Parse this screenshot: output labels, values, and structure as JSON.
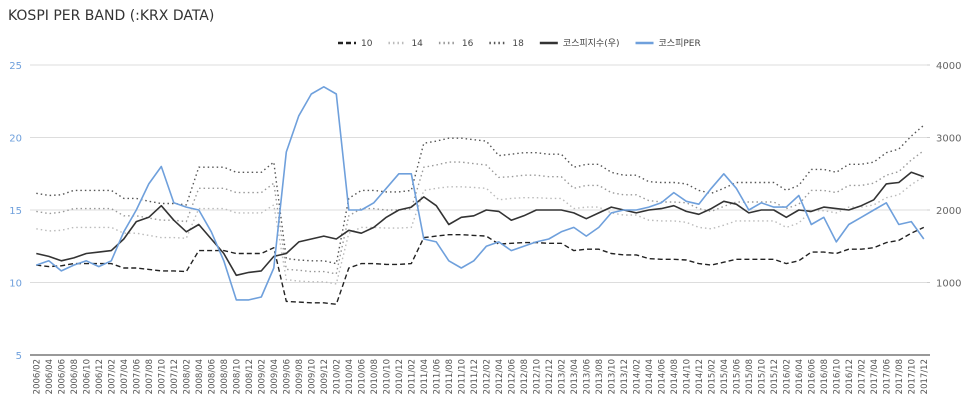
{
  "chart_data": {
    "type": "line",
    "title": "KOSPI PER BAND (:KRX DATA)",
    "categories": [
      "2006/02",
      "2006/04",
      "2006/06",
      "2006/08",
      "2006/10",
      "2006/12",
      "2007/02",
      "2007/04",
      "2007/06",
      "2007/08",
      "2007/10",
      "2007/12",
      "2008/02",
      "2008/04",
      "2008/06",
      "2008/08",
      "2008/10",
      "2008/12",
      "2009/02",
      "2009/04",
      "2009/06",
      "2009/08",
      "2009/10",
      "2009/12",
      "2010/02",
      "2010/04",
      "2010/06",
      "2010/08",
      "2010/10",
      "2010/12",
      "2011/02",
      "2011/04",
      "2011/06",
      "2011/08",
      "2011/10",
      "2011/12",
      "2012/02",
      "2012/04",
      "2012/06",
      "2012/08",
      "2012/10",
      "2012/12",
      "2013/02",
      "2013/04",
      "2013/06",
      "2013/08",
      "2013/10",
      "2013/12",
      "2014/02",
      "2014/04",
      "2014/06",
      "2014/08",
      "2014/10",
      "2014/12",
      "2015/02",
      "2015/04",
      "2015/06",
      "2015/08",
      "2015/10",
      "2015/12",
      "2016/02",
      "2016/04",
      "2016/06",
      "2016/08",
      "2016/10",
      "2016/12",
      "2017/02",
      "2017/04",
      "2017/06",
      "2017/08",
      "2017/10",
      "2017/12"
    ],
    "ylim": [
      5,
      25
    ],
    "yticks": [
      5,
      10,
      15,
      20,
      25
    ],
    "y2lim": [
      0,
      4000
    ],
    "y2ticks": [
      1000,
      2000,
      3000,
      4000
    ],
    "grid": true,
    "series": [
      {
        "name": "10",
        "color": "#222222",
        "style": "dashed",
        "axis": "y2",
        "values": [
          1240,
          1220,
          1230,
          1260,
          1260,
          1260,
          1260,
          1200,
          1200,
          1180,
          1160,
          1160,
          1150,
          1440,
          1440,
          1440,
          1400,
          1400,
          1400,
          1480,
          740,
          730,
          720,
          720,
          700,
          1200,
          1260,
          1260,
          1250,
          1250,
          1260,
          1620,
          1640,
          1660,
          1660,
          1650,
          1640,
          1530,
          1540,
          1550,
          1550,
          1540,
          1540,
          1440,
          1460,
          1460,
          1400,
          1380,
          1380,
          1330,
          1320,
          1320,
          1310,
          1260,
          1240,
          1280,
          1320,
          1320,
          1320,
          1320,
          1260,
          1300,
          1420,
          1420,
          1400,
          1460,
          1460,
          1480,
          1550,
          1580,
          1680,
          1760
        ]
      },
      {
        "name": "14",
        "color": "#bbbbbb",
        "style": "dotted",
        "axis": "y2",
        "values": [
          1740,
          1710,
          1720,
          1760,
          1760,
          1760,
          1760,
          1680,
          1680,
          1650,
          1620,
          1620,
          1610,
          2020,
          2020,
          2020,
          1960,
          1960,
          1960,
          2070,
          1040,
          1020,
          1010,
          1010,
          980,
          1680,
          1760,
          1760,
          1750,
          1750,
          1760,
          2270,
          2300,
          2320,
          2320,
          2310,
          2300,
          2140,
          2160,
          2170,
          2170,
          2160,
          2160,
          2020,
          2040,
          2040,
          1960,
          1930,
          1930,
          1860,
          1850,
          1850,
          1830,
          1760,
          1740,
          1790,
          1850,
          1850,
          1850,
          1850,
          1760,
          1820,
          1990,
          1990,
          1960,
          2040,
          2040,
          2070,
          2170,
          2210,
          2350,
          2460
        ]
      },
      {
        "name": "16",
        "color": "#999999",
        "style": "dotted",
        "axis": "y2",
        "values": [
          1980,
          1950,
          1970,
          2020,
          2020,
          2020,
          2020,
          1920,
          1920,
          1890,
          1860,
          1860,
          1840,
          2300,
          2300,
          2300,
          2240,
          2240,
          2240,
          2370,
          1180,
          1170,
          1150,
          1150,
          1120,
          1920,
          2020,
          2020,
          2000,
          2000,
          2020,
          2590,
          2620,
          2660,
          2660,
          2640,
          2620,
          2450,
          2460,
          2480,
          2480,
          2460,
          2460,
          2300,
          2340,
          2340,
          2240,
          2210,
          2210,
          2130,
          2110,
          2110,
          2100,
          2020,
          1980,
          2050,
          2110,
          2110,
          2110,
          2110,
          2020,
          2080,
          2270,
          2270,
          2240,
          2340,
          2340,
          2370,
          2480,
          2530,
          2690,
          2820
        ]
      },
      {
        "name": "18",
        "color": "#555555",
        "style": "dotted",
        "axis": "y2",
        "values": [
          2230,
          2200,
          2210,
          2270,
          2270,
          2270,
          2270,
          2160,
          2160,
          2120,
          2090,
          2090,
          2070,
          2590,
          2590,
          2590,
          2520,
          2520,
          2520,
          2660,
          1330,
          1310,
          1300,
          1300,
          1260,
          2160,
          2270,
          2270,
          2250,
          2250,
          2270,
          2920,
          2950,
          2990,
          2990,
          2970,
          2950,
          2750,
          2770,
          2790,
          2790,
          2770,
          2770,
          2590,
          2630,
          2630,
          2520,
          2480,
          2480,
          2390,
          2380,
          2380,
          2360,
          2270,
          2230,
          2300,
          2380,
          2380,
          2380,
          2380,
          2270,
          2340,
          2560,
          2560,
          2520,
          2630,
          2630,
          2660,
          2790,
          2840,
          3020,
          3170
        ]
      },
      {
        "name": "코스피지수(우)",
        "color": "#333333",
        "style": "solid",
        "axis": "y2",
        "values": [
          1400,
          1360,
          1300,
          1340,
          1400,
          1420,
          1440,
          1600,
          1840,
          1900,
          2060,
          1860,
          1700,
          1800,
          1600,
          1400,
          1100,
          1140,
          1160,
          1360,
          1400,
          1560,
          1600,
          1640,
          1600,
          1720,
          1680,
          1760,
          1900,
          2000,
          2040,
          2180,
          2060,
          1800,
          1900,
          1920,
          2000,
          1980,
          1860,
          1920,
          2000,
          2000,
          2000,
          1960,
          1880,
          1960,
          2040,
          2000,
          1960,
          2000,
          2020,
          2060,
          1980,
          1940,
          2020,
          2120,
          2080,
          1960,
          2000,
          2000,
          1900,
          2000,
          1980,
          2040,
          2020,
          2000,
          2060,
          2140,
          2360,
          2380,
          2520,
          2460
        ]
      },
      {
        "name": "코스피PER",
        "color": "#6fa0dc",
        "style": "solid",
        "values": [
          11.2,
          11.5,
          10.8,
          11.2,
          11.5,
          11.1,
          11.5,
          13.5,
          15.0,
          16.8,
          18.0,
          15.5,
          15.2,
          15.0,
          13.5,
          11.5,
          8.8,
          8.8,
          9.0,
          11.0,
          19.0,
          21.5,
          23.0,
          23.5,
          23.0,
          15.0,
          15.0,
          15.5,
          16.5,
          17.5,
          17.5,
          13.0,
          12.8,
          11.5,
          11.0,
          11.5,
          12.5,
          12.8,
          12.2,
          12.5,
          12.8,
          13.0,
          13.5,
          13.8,
          13.2,
          13.8,
          14.8,
          15.0,
          15.0,
          15.2,
          15.5,
          16.2,
          15.6,
          15.4,
          16.5,
          17.5,
          16.5,
          15.0,
          15.5,
          15.2,
          15.2,
          16.0,
          14.0,
          14.5,
          12.8,
          14.0,
          14.5,
          15.0,
          15.5,
          14.0,
          14.2,
          13.0
        ]
      }
    ]
  }
}
